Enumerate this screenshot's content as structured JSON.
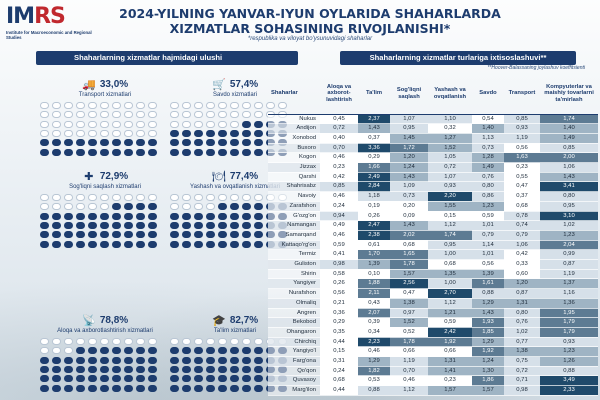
{
  "logo": {
    "mark_a": "IM",
    "mark_b": "RS",
    "sub": "Institute for Macroeconomic and Regional Studies"
  },
  "title": "2024-YILNING YANVAR-IYUN OYLARIDA SHAHARLARDA XIZMATLAR SOHASINING RIVOJLANISHI*",
  "subtitle": "*respublika va viloyat bo'ysunuvidagi shaharlar",
  "left": {
    "header": "Shaharlarning xizmatlar hajmidagi ulushi",
    "metrics": [
      {
        "pct": "33,0%",
        "label": "Transport xizmatlari",
        "icon": "truck-icon",
        "glyph": "🚚",
        "share": 0.33
      },
      {
        "pct": "57,4%",
        "label": "Savdo xizmatlari",
        "icon": "shopping-cart-icon",
        "glyph": "🛒",
        "share": 0.574
      },
      {
        "pct": "72,9%",
        "label": "Sog'liqni saqlash xizmatlari",
        "icon": "medical-cross-icon",
        "glyph": "✚",
        "share": 0.729
      },
      {
        "pct": "77,4%",
        "label": "Yashash va ovqatlanish xizmatlari",
        "icon": "dining-icon",
        "glyph": "🍽",
        "share": 0.774
      },
      {
        "pct": "78,8%",
        "label": "Aloqa va axborotlashtirish xizmatlari",
        "icon": "antenna-icon",
        "glyph": "📡",
        "share": 0.788
      },
      {
        "pct": "82,7%",
        "label": "Ta'lim xizmatlari",
        "icon": "graduation-cap-icon",
        "glyph": "🎓",
        "share": 0.827
      }
    ]
  },
  "right": {
    "header": "Shaharlarning xizmatlar turlariga ixtisoslashuvi**",
    "note": "**Hoover-Balassaning joylashuv koeffitsienti",
    "columns": [
      "Shaharlar",
      "Aloqa va axborot-lashtirish",
      "Ta'lim",
      "Sog'liqni saqlash",
      "Yashash va ovqatlanish",
      "Savdo",
      "Transport",
      "Kompyuterlar va maishiy tovarlarni ta'mirlash"
    ],
    "rows": [
      [
        "Nukus",
        "0,45",
        "2,37",
        "1,07",
        "1,10",
        "0,54",
        "0,85",
        "1,74"
      ],
      [
        "Andijon",
        "0,72",
        "1,43",
        "0,95",
        "0,32",
        "1,40",
        "0,93",
        "1,40"
      ],
      [
        "Xonobod",
        "0,40",
        "0,37",
        "1,45",
        "1,27",
        "1,13",
        "1,19",
        "1,49"
      ],
      [
        "Buxoro",
        "0,70",
        "3,36",
        "1,72",
        "1,52",
        "0,73",
        "0,56",
        "0,85"
      ],
      [
        "Kogon",
        "0,46",
        "0,29",
        "1,20",
        "1,05",
        "1,28",
        "1,63",
        "2,00"
      ],
      [
        "Jizzax",
        "0,23",
        "1,66",
        "1,24",
        "0,72",
        "1,49",
        "0,23",
        "1,06"
      ],
      [
        "Qarshi",
        "0,42",
        "2,49",
        "1,43",
        "1,07",
        "0,76",
        "0,55",
        "1,43"
      ],
      [
        "Shahrisabz",
        "0,85",
        "2,84",
        "1,09",
        "0,93",
        "0,80",
        "0,47",
        "3,41"
      ],
      [
        "Navoiy",
        "0,46",
        "1,18",
        "0,73",
        "2,20",
        "0,86",
        "0,37",
        "0,80"
      ],
      [
        "Zarafshon",
        "0,24",
        "0,19",
        "0,20",
        "1,55",
        "1,23",
        "0,68",
        "0,95"
      ],
      [
        "G'ozg'on",
        "0,94",
        "0,26",
        "0,09",
        "0,15",
        "0,59",
        "0,78",
        "3,10"
      ],
      [
        "Namangan",
        "0,49",
        "2,47",
        "1,43",
        "1,12",
        "1,01",
        "0,74",
        "1,02"
      ],
      [
        "Samarqand",
        "0,46",
        "2,38",
        "2,02",
        "1,74",
        "0,79",
        "0,79",
        "1,23"
      ],
      [
        "Kattaqo'rg'on",
        "0,59",
        "0,61",
        "0,68",
        "0,95",
        "1,14",
        "1,06",
        "2,04"
      ],
      [
        "Termiz",
        "0,41",
        "1,70",
        "1,65",
        "1,00",
        "1,01",
        "0,42",
        "0,99"
      ],
      [
        "Guliston",
        "0,98",
        "1,39",
        "1,78",
        "0,68",
        "0,56",
        "0,33",
        "0,87"
      ],
      [
        "Shirin",
        "0,58",
        "0,10",
        "1,57",
        "1,35",
        "1,39",
        "0,60",
        "1,19"
      ],
      [
        "Yangiyer",
        "0,26",
        "1,88",
        "2,56",
        "1,00",
        "1,61",
        "1,20",
        "1,37"
      ],
      [
        "Nurafshon",
        "0,56",
        "2,11",
        "0,47",
        "2,70",
        "0,88",
        "0,87",
        "1,16"
      ],
      [
        "Olmaliq",
        "0,21",
        "0,43",
        "1,38",
        "1,12",
        "1,29",
        "1,31",
        "1,36"
      ],
      [
        "Angren",
        "0,36",
        "2,07",
        "0,97",
        "1,21",
        "1,43",
        "0,80",
        "1,95"
      ],
      [
        "Bekobod",
        "0,29",
        "0,39",
        "1,52",
        "0,59",
        "1,93",
        "0,76",
        "1,79"
      ],
      [
        "Ohangaron",
        "0,35",
        "0,34",
        "0,52",
        "2,42",
        "1,85",
        "1,02",
        "1,79"
      ],
      [
        "Chirchiq",
        "0,44",
        "2,23",
        "1,78",
        "1,92",
        "1,29",
        "0,77",
        "0,93"
      ],
      [
        "Yangiyo'l",
        "0,15",
        "0,46",
        "0,66",
        "0,66",
        "1,92",
        "1,38",
        "1,23"
      ],
      [
        "Farg'ona",
        "0,31",
        "1,29",
        "1,19",
        "1,31",
        "1,24",
        "0,75",
        "1,26"
      ],
      [
        "Qo'qon",
        "0,24",
        "1,82",
        "0,70",
        "1,41",
        "1,30",
        "0,72",
        "0,88"
      ],
      [
        "Quvasoy",
        "0,68",
        "0,53",
        "0,46",
        "0,23",
        "1,86",
        "0,71",
        "3,49"
      ],
      [
        "Marg'ilon",
        "0,44",
        "0,88",
        "1,12",
        "1,57",
        "1,57",
        "0,98",
        "2,33"
      ]
    ]
  }
}
